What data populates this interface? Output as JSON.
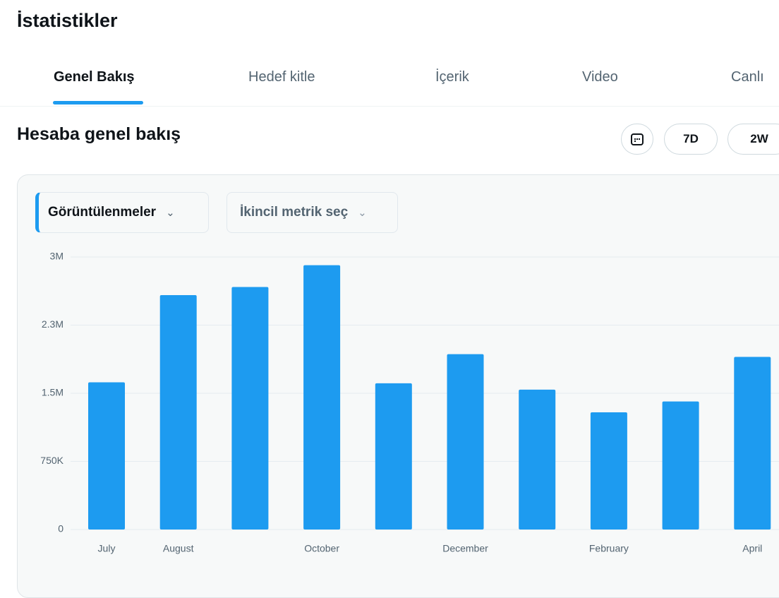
{
  "header": {
    "title": "İstatistikler"
  },
  "tabs": [
    "Genel Bakış",
    "Hedef kitle",
    "İçerik",
    "Video",
    "Canlı"
  ],
  "section": {
    "title": "Hesaba genel bakış",
    "ranges": [
      "7D",
      "2W"
    ]
  },
  "selectors": {
    "primary": "Görüntülenmeler",
    "secondary": "İkincil metrik seç"
  },
  "chart_data": {
    "type": "bar",
    "color": "#1d9bf0",
    "grid": true,
    "categories": [
      "July",
      "August",
      null,
      "October",
      null,
      "December",
      null,
      "February",
      null,
      "April"
    ],
    "values": [
      1620000,
      2580000,
      2670000,
      2910000,
      1610000,
      1930000,
      1540000,
      1290000,
      1410000,
      1900000
    ],
    "ylim": [
      0,
      3000000
    ],
    "yticks": [
      0,
      {
        "value": 750000,
        "label": "750K"
      },
      {
        "value": 1500000,
        "label": "1.5M"
      },
      {
        "value": 2250000,
        "label": "2.3M"
      },
      {
        "value": 3000000,
        "label": "3M"
      }
    ]
  }
}
